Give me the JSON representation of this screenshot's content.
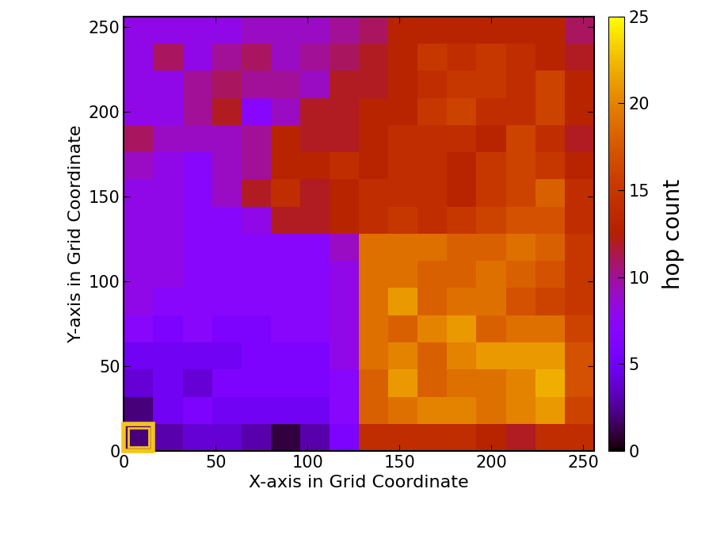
{
  "chart_data": {
    "type": "heatmap",
    "x_label": "X-axis in Grid Coordinate",
    "y_label": "Y-axis in Grid Coordinate",
    "x_bins": [
      0,
      16,
      32,
      48,
      64,
      80,
      96,
      112,
      128,
      144,
      160,
      176,
      192,
      208,
      224,
      240,
      256
    ],
    "y_bins": [
      0,
      16,
      32,
      48,
      64,
      80,
      96,
      112,
      128,
      144,
      160,
      176,
      192,
      208,
      224,
      240,
      256
    ],
    "cells": [
      [
        2,
        3,
        4,
        4,
        3,
        1,
        3,
        6,
        14,
        14,
        14,
        14,
        13,
        12,
        14,
        14
      ],
      [
        2,
        5,
        6,
        5,
        5,
        5,
        5,
        7,
        18,
        19,
        20,
        20,
        19,
        20,
        21,
        16
      ],
      [
        4,
        5,
        4,
        6,
        6,
        6,
        6,
        7,
        18,
        21,
        18,
        19,
        19,
        20,
        22,
        17
      ],
      [
        5,
        5,
        5,
        5,
        6,
        6,
        6,
        8,
        19,
        20,
        18,
        20,
        21,
        21,
        21,
        17
      ],
      [
        7,
        6,
        7,
        6,
        6,
        7,
        7,
        8,
        19,
        18,
        20,
        21,
        18,
        19,
        19,
        16
      ],
      [
        8,
        7,
        7,
        7,
        7,
        7,
        7,
        8,
        19,
        21,
        18,
        19,
        19,
        17,
        16,
        15
      ],
      [
        8,
        8,
        7,
        7,
        7,
        7,
        7,
        8,
        19,
        19,
        18,
        18,
        19,
        18,
        17,
        15
      ],
      [
        8,
        8,
        7,
        7,
        7,
        7,
        7,
        9,
        19,
        19,
        19,
        18,
        18,
        19,
        18,
        15
      ],
      [
        8,
        8,
        7,
        7,
        8,
        12,
        12,
        13,
        14,
        15,
        14,
        15,
        16,
        17,
        17,
        14
      ],
      [
        8,
        8,
        7,
        9,
        12,
        14,
        12,
        13,
        14,
        14,
        14,
        13,
        15,
        16,
        18,
        14
      ],
      [
        9,
        8,
        7,
        9,
        10,
        13,
        13,
        14,
        13,
        14,
        14,
        13,
        15,
        16,
        15,
        13
      ],
      [
        11,
        9,
        9,
        9,
        10,
        13,
        12,
        12,
        13,
        14,
        14,
        14,
        13,
        16,
        14,
        12
      ],
      [
        8,
        8,
        10,
        12,
        7,
        9,
        12,
        12,
        13,
        13,
        15,
        16,
        14,
        14,
        16,
        13
      ],
      [
        8,
        8,
        10,
        11,
        10,
        10,
        9,
        12,
        12,
        13,
        14,
        15,
        15,
        14,
        16,
        13
      ],
      [
        8,
        11,
        8,
        10,
        11,
        9,
        10,
        11,
        12,
        13,
        15,
        14,
        15,
        14,
        13,
        12
      ],
      [
        8,
        8,
        8,
        8,
        9,
        9,
        9,
        10,
        11,
        13,
        13,
        13,
        13,
        13,
        13,
        11
      ]
    ],
    "xlim": [
      0,
      256
    ],
    "ylim": [
      0,
      256
    ],
    "xticks": [
      0,
      50,
      100,
      150,
      200,
      250
    ],
    "yticks": [
      0,
      50,
      100,
      150,
      200,
      250
    ],
    "colorbar_label": "hop count",
    "colorbar_lim": [
      0,
      25
    ],
    "colorbar_ticks": [
      0,
      5,
      10,
      15,
      20,
      25
    ]
  }
}
